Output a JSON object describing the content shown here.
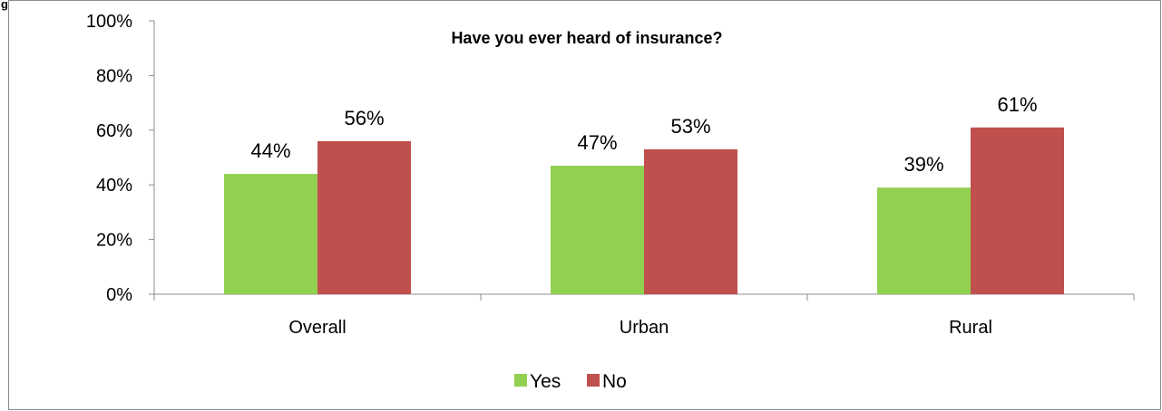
{
  "figure_fragment": "g",
  "chart_data": {
    "type": "bar",
    "title": "Have you ever heard of insurance?",
    "categories": [
      "Overall",
      "Urban",
      "Rural"
    ],
    "series": [
      {
        "name": "Yes",
        "color": "#92d050",
        "values": [
          44,
          47,
          39
        ],
        "labels": [
          "44%",
          "47%",
          "39%"
        ]
      },
      {
        "name": "No",
        "color": "#c0504d",
        "values": [
          56,
          53,
          61
        ],
        "labels": [
          "56%",
          "53%",
          "61%"
        ]
      }
    ],
    "ylim": [
      0,
      100
    ],
    "yticks": [
      "0%",
      "20%",
      "40%",
      "60%",
      "80%",
      "100%"
    ],
    "ytick_values": [
      0,
      20,
      40,
      60,
      80,
      100
    ],
    "xlabel": "",
    "ylabel": "",
    "grid": false,
    "legend_position": "bottom"
  }
}
